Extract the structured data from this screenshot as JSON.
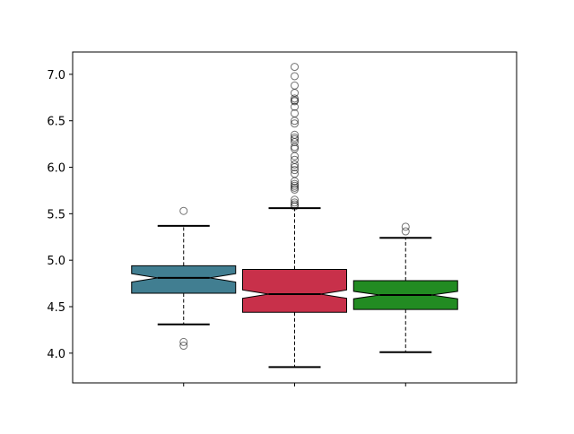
{
  "chart_data": {
    "type": "boxplot",
    "title": "",
    "xlabel": "",
    "ylabel": "",
    "ylim": [
      3.68,
      7.24
    ],
    "yticks": [
      "4.0",
      "4.5",
      "5.0",
      "5.5",
      "6.0",
      "6.5",
      "7.0"
    ],
    "xtick_labels": [
      "",
      "",
      ""
    ],
    "grid": false,
    "notched": true,
    "boxes": [
      {
        "color": "#417e91",
        "q1": 4.645,
        "median": 4.81,
        "q3": 4.94,
        "notch_low": 4.765,
        "notch_high": 4.855,
        "whisker_low": 4.31,
        "whisker_high": 5.37,
        "outliers": [
          5.53,
          4.12,
          4.08
        ]
      },
      {
        "color": "#c8304a",
        "q1": 4.44,
        "median": 4.635,
        "q3": 4.9,
        "notch_low": 4.59,
        "notch_high": 4.68,
        "whisker_low": 3.85,
        "whisker_high": 5.56,
        "outliers": [
          7.08,
          6.98,
          6.88,
          6.8,
          6.74,
          6.72,
          6.71,
          6.65,
          6.58,
          6.5,
          6.47,
          6.35,
          6.32,
          6.3,
          6.27,
          6.22,
          6.2,
          6.12,
          6.08,
          6.03,
          6.0,
          5.97,
          5.93,
          5.85,
          5.82,
          5.8,
          5.78,
          5.76,
          5.65,
          5.62,
          5.6,
          5.58
        ]
      },
      {
        "color": "#228b22",
        "q1": 4.47,
        "median": 4.625,
        "q3": 4.78,
        "notch_low": 4.585,
        "notch_high": 4.665,
        "whisker_low": 4.01,
        "whisker_high": 5.24,
        "outliers": [
          5.36,
          5.31
        ]
      }
    ]
  }
}
